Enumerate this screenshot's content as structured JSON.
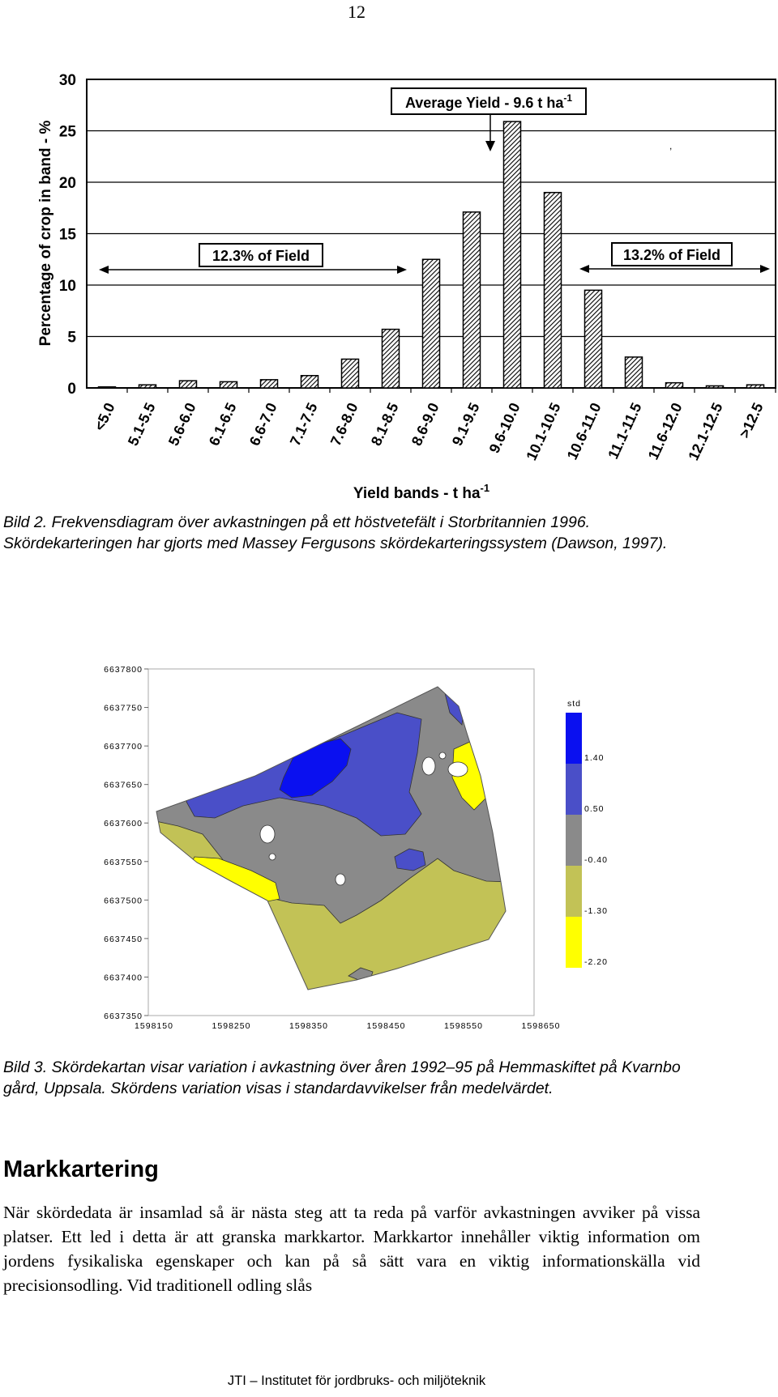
{
  "page_number": "12",
  "chart_data": [
    {
      "type": "bar",
      "ylabel": "Percentage of crop in band - %",
      "xlabel": "Yield bands - t ha",
      "xlabel_superscript": "-1",
      "ylim": [
        0,
        30
      ],
      "yticks": [
        "0",
        "5",
        "10",
        "15",
        "20",
        "25",
        "30"
      ],
      "grid": true,
      "categories": [
        "<5.0",
        "5.1-5.5",
        "5.6-6.0",
        "6.1-6.5",
        "6.6-7.0",
        "7.1-7.5",
        "7.6-8.0",
        "8.1-8.5",
        "8.6-9.0",
        "9.1-9.5",
        "9.6-10.0",
        "10.1-10.5",
        "10.6-11.0",
        "11.1-11.5",
        "11.6-12.0",
        "12.1-12.5",
        ">12.5"
      ],
      "values": [
        0.1,
        0.3,
        0.7,
        0.6,
        0.8,
        1.2,
        2.8,
        5.7,
        12.5,
        17.1,
        25.9,
        19.0,
        9.5,
        3.0,
        0.5,
        0.2,
        0.3
      ],
      "bar_pattern": "hatched",
      "annotations": {
        "average": "Average Yield - 9.6 t ha",
        "average_superscript": "-1",
        "left_share": "12.3% of Field",
        "right_share": "13.2% of Field"
      }
    },
    {
      "type": "heatmap",
      "y_tick_labels": [
        "6637800",
        "6637750",
        "6637700",
        "6637650",
        "6637600",
        "6637550",
        "6637500",
        "6637450",
        "6637400",
        "6637350"
      ],
      "x_tick_labels": [
        "1598150",
        "1598250",
        "1598350",
        "1598450",
        "1598550",
        "1598650"
      ],
      "legend_title": "std",
      "legend_labels": [
        "1.40",
        "0.50",
        "-0.40",
        "-1.30",
        "-2.20"
      ],
      "legend_colors": [
        "#0a10f0",
        "#4a4fc8",
        "#8a8a8a",
        "#c2c256",
        "#ffff00"
      ]
    }
  ],
  "captions": {
    "bild2": "Bild 2. Frekvensdiagram över avkastningen på ett höstvetefält i Storbritannien 1996. Skördekarteringen har gjorts med Massey Fergusons skördekarteringssystem (Dawson, 1997).",
    "bild3": "Bild 3. Skördekartan visar variation i avkastning över åren 1992–95 på Hemmaskiftet på Kvarnbo gård, Uppsala. Skördens variation visas i standardavvikelser från medelvärdet."
  },
  "section": {
    "heading": "Markkartering",
    "body": "När skördedata är insamlad så är nästa steg att ta reda på varför avkastningen avviker på vissa platser. Ett led i detta är att granska markkartor. Markkartor innehåller viktig information om jordens fysikaliska egenskaper och kan på så sätt vara en viktig informationskälla vid precisionsodling. Vid traditionell odling slås"
  },
  "footer": "JTI – Institutet för jordbruks- och miljöteknik"
}
